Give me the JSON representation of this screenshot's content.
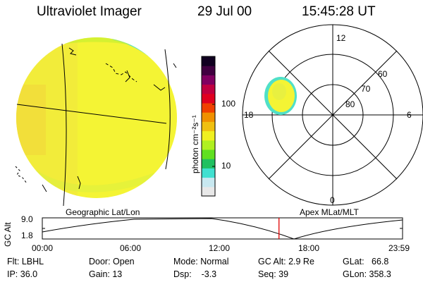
{
  "header": {
    "title": "Ultraviolet Imager",
    "date": "29 Jul 00",
    "time": "15:45:28 UT"
  },
  "colorbar": {
    "unit_label": "photon cm⁻²s⁻¹",
    "tick_100": "100",
    "tick_10": "10",
    "colors": [
      "#e8e8e8",
      "#c8e8f0",
      "#40e0d0",
      "#20c060",
      "#60e020",
      "#b0f020",
      "#f0f020",
      "#f0c010",
      "#f09000",
      "#f04000",
      "#e00020",
      "#c00040",
      "#800060",
      "#400040",
      "#100020"
    ]
  },
  "polar": {
    "mlt_top": "12",
    "mlt_bottom": "0",
    "mlt_left": "18",
    "mlt_right": "6",
    "lat_60": "60",
    "lat_70": "70",
    "lat_80": "80"
  },
  "labels": {
    "left_panel": "Geographic Lat/Lon",
    "right_panel": "Apex MLat/MLT"
  },
  "orbit_plot": {
    "ylabel": "GC Alt",
    "y_top": "9.0",
    "y_bottom": "1.8",
    "x_ticks": [
      "00:00",
      "06:00",
      "12:00",
      "18:00",
      "23:59"
    ],
    "current_time_fraction": 0.657,
    "marker_color": "#e00000"
  },
  "footer": {
    "flt": "Flt: LBHL",
    "ip": "IP: 36.0",
    "door": "Door: Open",
    "gain": "Gain: 13",
    "mode": "Mode: Normal",
    "dsp": "Dsp:    -3.3",
    "gc_alt": "GC Alt: 2.9 Re",
    "seq": "Seq: 39",
    "glat": "GLat:   66.8",
    "glon": "GLon: 358.3"
  }
}
